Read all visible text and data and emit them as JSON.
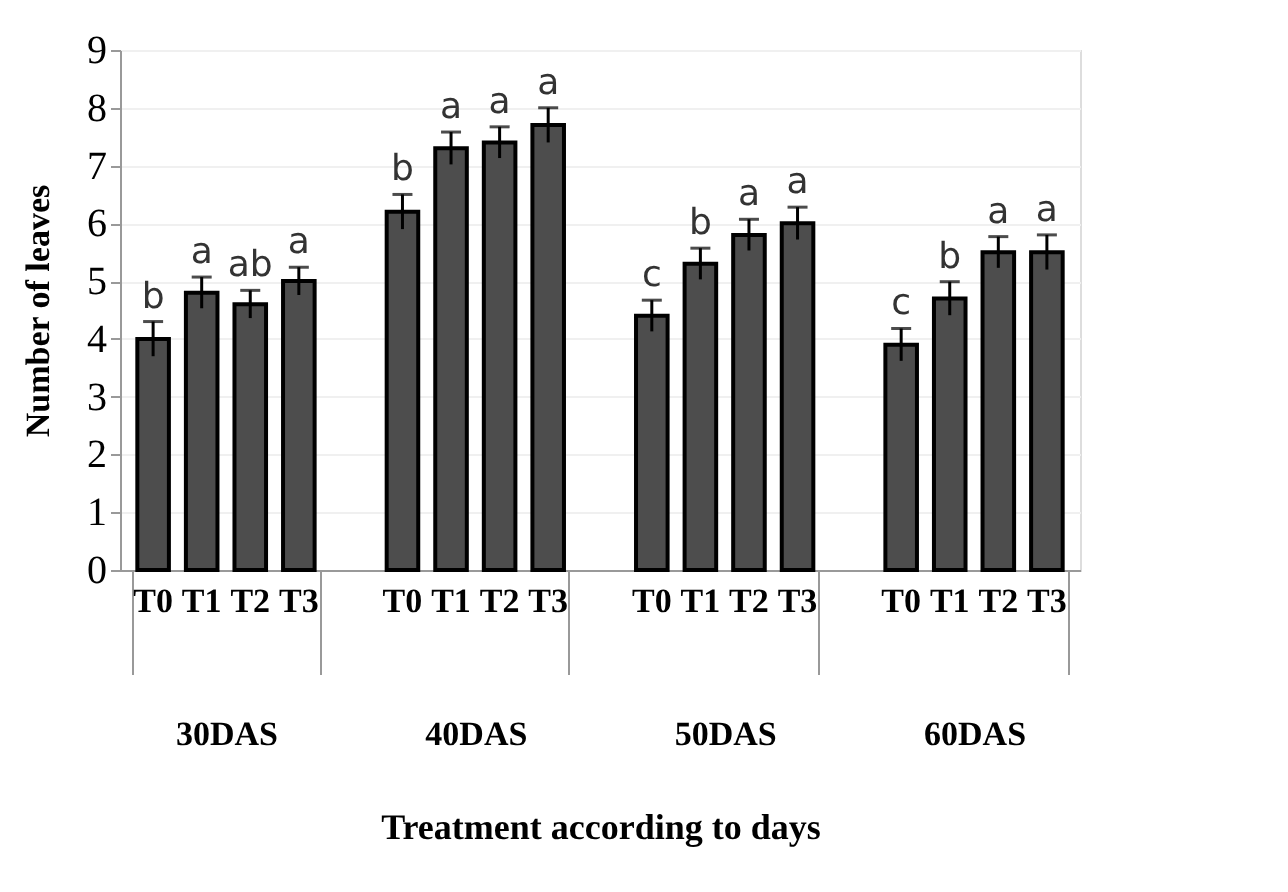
{
  "chart_data": {
    "type": "bar",
    "xlabel": "Treatment according to days",
    "ylabel": "Number of leaves",
    "categories": [
      "30DAS",
      "40DAS",
      "50DAS",
      "60DAS"
    ],
    "series": [
      {
        "name": "T0",
        "color": "#4d4d4d",
        "values": [
          4.0,
          6.2,
          4.4,
          3.9
        ],
        "errors": [
          0.3,
          0.3,
          0.27,
          0.28
        ],
        "value_labels": [
          "b",
          "b",
          "c",
          "c"
        ]
      },
      {
        "name": "T1",
        "color": "#4d4d4d",
        "values": [
          4.8,
          7.3,
          5.3,
          4.7
        ],
        "errors": [
          0.27,
          0.28,
          0.27,
          0.29
        ],
        "value_labels": [
          "a",
          "a",
          "b",
          "b"
        ]
      },
      {
        "name": "T2",
        "color": "#4d4d4d",
        "values": [
          4.6,
          7.4,
          5.8,
          5.5
        ],
        "errors": [
          0.24,
          0.27,
          0.27,
          0.27
        ],
        "value_labels": [
          "ab",
          "a",
          "a",
          "a"
        ]
      },
      {
        "name": "T3",
        "color": "#4d4d4d",
        "values": [
          5.0,
          7.7,
          6.0,
          5.5
        ],
        "errors": [
          0.24,
          0.3,
          0.28,
          0.3
        ],
        "value_labels": [
          "a",
          "a",
          "a",
          "a"
        ]
      }
    ],
    "ylim": [
      0,
      9
    ],
    "yticks": [
      0,
      1,
      2,
      3,
      4,
      5,
      6,
      7,
      8,
      9
    ],
    "grid": "y",
    "legend": false
  }
}
